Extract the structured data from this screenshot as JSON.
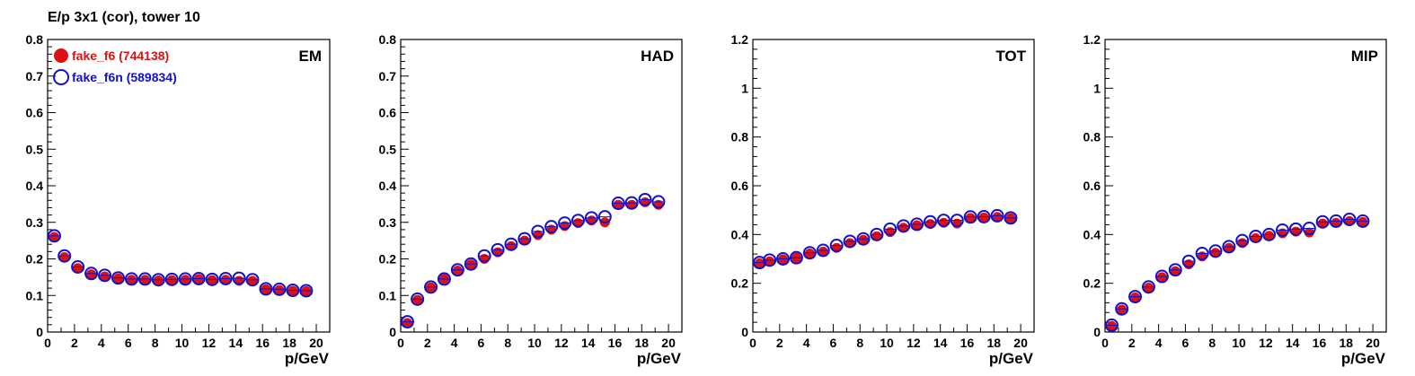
{
  "title": "E/p 3x1 (cor), tower 10",
  "colors": {
    "series1": "#dd1111",
    "series2": "#1111cc",
    "axis": "#000000"
  },
  "chart_data": [
    {
      "type": "scatter",
      "panel_label": "EM",
      "xlabel": "p/GeV",
      "xlim": [
        0,
        21
      ],
      "ylim": [
        0,
        0.8
      ],
      "xticks": [
        0,
        2,
        4,
        6,
        8,
        10,
        12,
        14,
        16,
        18,
        20
      ],
      "yticks": [
        0,
        0.1,
        0.2,
        0.3,
        0.4,
        0.5,
        0.6,
        0.7,
        0.8
      ],
      "legend": [
        {
          "label": "fake_f6 (744138)",
          "color": "#dd1111",
          "marker": "filled-circle"
        },
        {
          "label": "fake_f6n (589834)",
          "color": "#1111cc",
          "marker": "open-circle"
        }
      ],
      "x": [
        0.5,
        1.25,
        2.25,
        3.25,
        4.25,
        5.25,
        6.25,
        7.25,
        8.25,
        9.25,
        10.25,
        11.25,
        12.25,
        13.25,
        14.25,
        15.25,
        16.25,
        17.25,
        18.25,
        19.25
      ],
      "series": [
        {
          "name": "fake_f6 (744138)",
          "color": "#dd1111",
          "values": [
            0.26,
            0.205,
            0.175,
            0.158,
            0.152,
            0.147,
            0.143,
            0.143,
            0.141,
            0.142,
            0.143,
            0.145,
            0.142,
            0.143,
            0.14,
            0.14,
            0.117,
            0.115,
            0.113,
            0.112
          ]
        },
        {
          "name": "fake_f6n (589834)",
          "color": "#1111cc",
          "values": [
            0.263,
            0.208,
            0.178,
            0.16,
            0.155,
            0.148,
            0.145,
            0.145,
            0.143,
            0.144,
            0.145,
            0.146,
            0.144,
            0.146,
            0.147,
            0.143,
            0.118,
            0.117,
            0.114,
            0.113
          ]
        }
      ]
    },
    {
      "type": "scatter",
      "panel_label": "HAD",
      "xlabel": "p/GeV",
      "xlim": [
        0,
        21
      ],
      "ylim": [
        0,
        0.8
      ],
      "xticks": [
        0,
        2,
        4,
        6,
        8,
        10,
        12,
        14,
        16,
        18,
        20
      ],
      "yticks": [
        0,
        0.1,
        0.2,
        0.3,
        0.4,
        0.5,
        0.6,
        0.7,
        0.8
      ],
      "x": [
        0.5,
        1.25,
        2.25,
        3.25,
        4.25,
        5.25,
        6.25,
        7.25,
        8.25,
        9.25,
        10.25,
        11.25,
        12.25,
        13.25,
        14.25,
        15.25,
        16.25,
        17.25,
        18.25,
        19.25
      ],
      "series": [
        {
          "name": "fake_f6 (744138)",
          "color": "#dd1111",
          "values": [
            0.025,
            0.088,
            0.122,
            0.145,
            0.168,
            0.185,
            0.2,
            0.218,
            0.235,
            0.25,
            0.265,
            0.28,
            0.29,
            0.298,
            0.305,
            0.3,
            0.348,
            0.348,
            0.355,
            0.348
          ]
        },
        {
          "name": "fake_f6n (589834)",
          "color": "#1111cc",
          "values": [
            0.028,
            0.09,
            0.123,
            0.145,
            0.17,
            0.186,
            0.208,
            0.225,
            0.24,
            0.255,
            0.275,
            0.288,
            0.298,
            0.305,
            0.312,
            0.315,
            0.352,
            0.353,
            0.362,
            0.356
          ]
        }
      ]
    },
    {
      "type": "scatter",
      "panel_label": "TOT",
      "xlabel": "p/GeV",
      "xlim": [
        0,
        21
      ],
      "ylim": [
        0,
        1.2
      ],
      "xticks": [
        0,
        2,
        4,
        6,
        8,
        10,
        12,
        14,
        16,
        18,
        20
      ],
      "yticks": [
        0,
        0.2,
        0.4,
        0.6,
        0.8,
        1,
        1.2
      ],
      "x": [
        0.5,
        1.25,
        2.25,
        3.25,
        4.25,
        5.25,
        6.25,
        7.25,
        8.25,
        9.25,
        10.25,
        11.25,
        12.25,
        13.25,
        14.25,
        15.25,
        16.25,
        17.25,
        18.25,
        19.25
      ],
      "series": [
        {
          "name": "fake_f6 (744138)",
          "color": "#dd1111",
          "values": [
            0.282,
            0.29,
            0.298,
            0.305,
            0.322,
            0.33,
            0.345,
            0.365,
            0.378,
            0.393,
            0.41,
            0.428,
            0.438,
            0.443,
            0.448,
            0.445,
            0.468,
            0.47,
            0.472,
            0.467
          ]
        },
        {
          "name": "fake_f6n (589834)",
          "color": "#1111cc",
          "values": [
            0.285,
            0.295,
            0.3,
            0.305,
            0.325,
            0.335,
            0.355,
            0.372,
            0.382,
            0.4,
            0.422,
            0.435,
            0.442,
            0.452,
            0.458,
            0.458,
            0.472,
            0.473,
            0.477,
            0.468
          ]
        }
      ]
    },
    {
      "type": "scatter",
      "panel_label": "MIP",
      "xlabel": "p/GeV",
      "xlim": [
        0,
        21
      ],
      "ylim": [
        0,
        1.2
      ],
      "xticks": [
        0,
        2,
        4,
        6,
        8,
        10,
        12,
        14,
        16,
        18,
        20
      ],
      "yticks": [
        0,
        0.2,
        0.4,
        0.6,
        0.8,
        1,
        1.2
      ],
      "x": [
        0.5,
        1.25,
        2.25,
        3.25,
        4.25,
        5.25,
        6.25,
        7.25,
        8.25,
        9.25,
        10.25,
        11.25,
        12.25,
        13.25,
        14.25,
        15.25,
        16.25,
        17.25,
        18.25,
        19.25
      ],
      "series": [
        {
          "name": "fake_f6 (744138)",
          "color": "#dd1111",
          "values": [
            0.025,
            0.092,
            0.142,
            0.182,
            0.225,
            0.25,
            0.278,
            0.31,
            0.325,
            0.345,
            0.365,
            0.385,
            0.395,
            0.405,
            0.412,
            0.408,
            0.445,
            0.448,
            0.455,
            0.452
          ]
        },
        {
          "name": "fake_f6n (589834)",
          "color": "#1111cc",
          "values": [
            0.028,
            0.095,
            0.145,
            0.185,
            0.228,
            0.255,
            0.29,
            0.322,
            0.332,
            0.35,
            0.375,
            0.392,
            0.4,
            0.418,
            0.422,
            0.425,
            0.452,
            0.455,
            0.462,
            0.455
          ]
        }
      ]
    }
  ]
}
